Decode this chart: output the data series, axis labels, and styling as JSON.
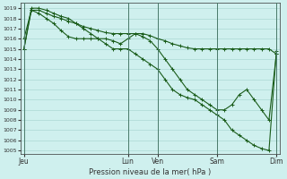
{
  "xlabel": "Pression niveau de la mer( hPa )",
  "bg_color": "#cff0ee",
  "grid_color": "#aad8d4",
  "line_color": "#1a5c1a",
  "ylim": [
    1005,
    1019.5
  ],
  "yticks": [
    1005,
    1006,
    1007,
    1008,
    1009,
    1010,
    1011,
    1012,
    1013,
    1014,
    1015,
    1016,
    1017,
    1018,
    1019
  ],
  "xtick_labels": [
    "Jeu",
    "Lun",
    "Ven",
    "Sam",
    "Dim"
  ],
  "day_positions": [
    0,
    14,
    18,
    26,
    34
  ],
  "total_points": 35,
  "line1_x": [
    0,
    1,
    2,
    3,
    4,
    5,
    6,
    7,
    8,
    9,
    10,
    11,
    12,
    13,
    14,
    15,
    16,
    17,
    18,
    19,
    20,
    21,
    22,
    23,
    24,
    25,
    26,
    27,
    28,
    29,
    30,
    31,
    32,
    33,
    34
  ],
  "line1_y": [
    1016,
    1018.8,
    1018.8,
    1018.5,
    1018.2,
    1018,
    1017.7,
    1017.5,
    1017.2,
    1017,
    1016.8,
    1016.6,
    1016.5,
    1016.5,
    1016.5,
    1016.5,
    1016.5,
    1016.3,
    1016,
    1015.8,
    1015.5,
    1015.3,
    1015.1,
    1015,
    1015,
    1015,
    1015,
    1015,
    1015,
    1015,
    1015,
    1015,
    1015,
    1015,
    1014.5
  ],
  "line2_x": [
    0,
    1,
    2,
    3,
    4,
    5,
    6,
    7,
    8,
    9,
    10,
    11,
    12,
    13,
    14,
    15,
    16,
    17,
    18,
    19,
    20,
    21,
    22,
    23,
    24,
    25,
    26,
    27,
    28,
    29,
    30,
    31,
    32,
    33,
    34
  ],
  "line2_y": [
    1015,
    1018.8,
    1018.5,
    1018,
    1017.5,
    1016.8,
    1016.2,
    1016,
    1016,
    1016,
    1016,
    1016,
    1015.8,
    1015.5,
    1016,
    1016.5,
    1016.2,
    1015.8,
    1015,
    1014,
    1013,
    1012,
    1011,
    1010.5,
    1010,
    1009.5,
    1009,
    1009,
    1009.5,
    1010.5,
    1011,
    1010,
    1009,
    1008,
    1014.5
  ],
  "line3_x": [
    0,
    1,
    2,
    3,
    4,
    5,
    6,
    7,
    8,
    9,
    10,
    11,
    12,
    13,
    14,
    15,
    16,
    17,
    18,
    19,
    20,
    21,
    22,
    23,
    24,
    25,
    26,
    27,
    28,
    29,
    30,
    31,
    32,
    33,
    34
  ],
  "line3_y": [
    1015,
    1019,
    1019,
    1018.8,
    1018.5,
    1018.2,
    1018,
    1017.5,
    1017,
    1016.5,
    1016,
    1015.5,
    1015,
    1015,
    1015,
    1014.5,
    1014,
    1013.5,
    1013,
    1012,
    1011,
    1010.5,
    1010.2,
    1010,
    1009.5,
    1009,
    1008.5,
    1008,
    1007,
    1006.5,
    1006,
    1005.5,
    1005.2,
    1005,
    1014.8
  ],
  "marker_size": 2.2,
  "linewidth": 0.8
}
